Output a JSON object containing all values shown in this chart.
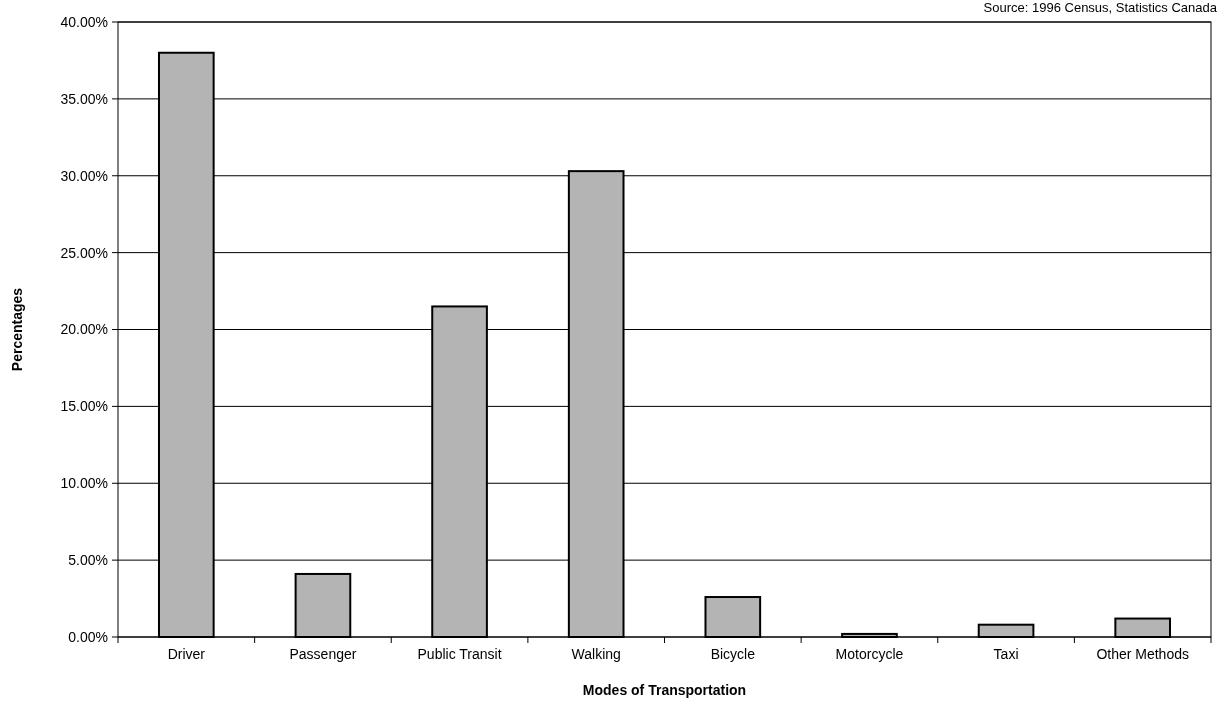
{
  "chart_data": {
    "type": "bar",
    "xlabel": "Modes of Transportation",
    "ylabel": "Percentages",
    "annotations": [
      "Source: 1996 Census, Statistics Canada"
    ],
    "categories": [
      "Driver",
      "Passenger",
      "Public Transit",
      "Walking",
      "Bicycle",
      "Motorcycle",
      "Taxi",
      "Other Methods"
    ],
    "values": [
      38,
      4.1,
      21.5,
      30.3,
      2.6,
      0.2,
      0.8,
      1.2
    ],
    "color": "#b4b4b4",
    "ylim": [
      0,
      40
    ],
    "yticks": [
      {
        "value": 0,
        "label": "0.00%"
      },
      {
        "value": 5,
        "label": "5.00%"
      },
      {
        "value": 10,
        "label": "10.00%"
      },
      {
        "value": 15,
        "label": "15.00%"
      },
      {
        "value": 20,
        "label": "20.00%"
      },
      {
        "value": 25,
        "label": "25.00%"
      },
      {
        "value": 30,
        "label": "30.00%"
      },
      {
        "value": 35,
        "label": "35.00%"
      },
      {
        "value": 40,
        "label": "40.00%"
      }
    ],
    "grid": "y"
  }
}
